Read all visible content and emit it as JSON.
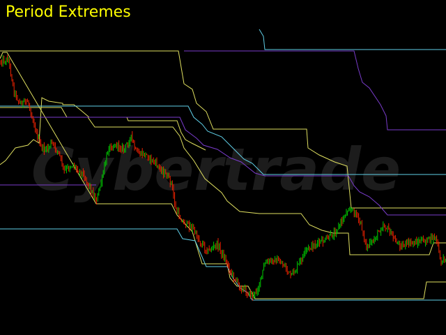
{
  "title": "Period Extremes",
  "watermark": "Cybertrade",
  "colors": {
    "background": "#000000",
    "title": "#ffff00",
    "up_candle": "#00cc00",
    "down_candle": "#ee2200",
    "yellow_band": "#e0e060",
    "cyan_band": "#60d0e8",
    "purple_band": "#7a3ccc",
    "watermark": "#1c1c1c"
  },
  "chart_data": {
    "type": "line",
    "x_count": 640,
    "ylim": [
      0,
      480
    ],
    "price_anchors": [
      [
        0,
        88
      ],
      [
        12,
        85
      ],
      [
        20,
        130
      ],
      [
        28,
        148
      ],
      [
        40,
        145
      ],
      [
        52,
        190
      ],
      [
        58,
        210
      ],
      [
        66,
        215
      ],
      [
        74,
        205
      ],
      [
        84,
        218
      ],
      [
        92,
        245
      ],
      [
        104,
        236
      ],
      [
        118,
        248
      ],
      [
        126,
        262
      ],
      [
        138,
        288
      ],
      [
        146,
        258
      ],
      [
        156,
        210
      ],
      [
        168,
        208
      ],
      [
        178,
        214
      ],
      [
        188,
        196
      ],
      [
        196,
        220
      ],
      [
        210,
        222
      ],
      [
        224,
        235
      ],
      [
        236,
        248
      ],
      [
        246,
        262
      ],
      [
        252,
        300
      ],
      [
        262,
        318
      ],
      [
        276,
        326
      ],
      [
        286,
        345
      ],
      [
        298,
        360
      ],
      [
        312,
        350
      ],
      [
        322,
        370
      ],
      [
        334,
        395
      ],
      [
        346,
        412
      ],
      [
        356,
        420
      ],
      [
        364,
        424
      ],
      [
        372,
        408
      ],
      [
        380,
        378
      ],
      [
        392,
        372
      ],
      [
        406,
        378
      ],
      [
        418,
        396
      ],
      [
        428,
        380
      ],
      [
        440,
        358
      ],
      [
        452,
        350
      ],
      [
        466,
        345
      ],
      [
        478,
        336
      ],
      [
        490,
        318
      ],
      [
        500,
        298
      ],
      [
        510,
        305
      ],
      [
        518,
        322
      ],
      [
        526,
        355
      ],
      [
        534,
        348
      ],
      [
        542,
        334
      ],
      [
        550,
        322
      ],
      [
        558,
        330
      ],
      [
        566,
        344
      ],
      [
        576,
        352
      ],
      [
        590,
        348
      ],
      [
        606,
        346
      ],
      [
        618,
        342
      ],
      [
        626,
        340
      ],
      [
        632,
        375
      ],
      [
        640,
        368
      ]
    ],
    "series": [
      {
        "color_key": "yellow_band",
        "points": [
          [
            0,
            73
          ],
          [
            256,
            73
          ],
          [
            264,
            120
          ],
          [
            276,
            128
          ],
          [
            282,
            148
          ],
          [
            296,
            160
          ],
          [
            306,
            185
          ],
          [
            440,
            185
          ],
          [
            442,
            212
          ],
          [
            458,
            222
          ],
          [
            480,
            232
          ],
          [
            498,
            238
          ],
          [
            504,
            298
          ],
          [
            640,
            298
          ]
        ]
      },
      {
        "color_key": "yellow_band",
        "points": [
          [
            0,
            154
          ],
          [
            88,
            154
          ],
          [
            96,
            168
          ],
          [
            126,
            168
          ],
          [
            136,
            182
          ],
          [
            248,
            182
          ],
          [
            258,
            195
          ],
          [
            264,
            212
          ],
          [
            278,
            230
          ],
          [
            294,
            256
          ],
          [
            318,
            276
          ],
          [
            326,
            288
          ],
          [
            344,
            303
          ],
          [
            372,
            306
          ],
          [
            432,
            306
          ],
          [
            444,
            322
          ],
          [
            462,
            330
          ],
          [
            478,
            334
          ],
          [
            500,
            334
          ],
          [
            502,
            365
          ],
          [
            616,
            365
          ],
          [
            622,
            348
          ],
          [
            640,
            348
          ]
        ]
      },
      {
        "color_key": "yellow_band",
        "points": [
          [
            0,
            236
          ],
          [
            8,
            230
          ],
          [
            22,
            212
          ],
          [
            40,
            208
          ],
          [
            48,
            200
          ],
          [
            56,
            205
          ],
          [
            60,
            140
          ],
          [
            70,
            145
          ],
          [
            90,
            148
          ],
          [
            90,
            150
          ],
          [
            106,
            150
          ],
          [
            116,
            158
          ],
          [
            128,
            168
          ],
          [
            182,
            168
          ],
          [
            184,
            173
          ],
          [
            254,
            173
          ],
          [
            260,
            190
          ],
          [
            266,
            200
          ],
          [
            275,
            205
          ],
          [
            295,
            215
          ]
        ]
      },
      {
        "color_key": "yellow_band",
        "points": [
          [
            0,
            84
          ],
          [
            4,
            75
          ],
          [
            10,
            75
          ],
          [
            138,
            292
          ],
          [
            246,
            292
          ],
          [
            254,
            308
          ],
          [
            276,
            332
          ],
          [
            290,
            378
          ],
          [
            326,
            378
          ],
          [
            330,
            398
          ],
          [
            340,
            410
          ],
          [
            356,
            410
          ],
          [
            366,
            428
          ],
          [
            608,
            428
          ],
          [
            612,
            404
          ],
          [
            640,
            404
          ]
        ]
      },
      {
        "color_key": "cyan_band",
        "points": [
          [
            372,
            42
          ],
          [
            378,
            52
          ],
          [
            380,
            71
          ],
          [
            640,
            71
          ]
        ]
      },
      {
        "color_key": "cyan_band",
        "points": [
          [
            0,
            152
          ],
          [
            270,
            152
          ],
          [
            278,
            168
          ],
          [
            290,
            178
          ],
          [
            298,
            188
          ],
          [
            318,
            196
          ],
          [
            334,
            212
          ],
          [
            350,
            228
          ],
          [
            362,
            234
          ],
          [
            370,
            242
          ],
          [
            378,
            250
          ],
          [
            640,
            250
          ]
        ]
      },
      {
        "color_key": "cyan_band",
        "points": [
          [
            0,
            328
          ],
          [
            254,
            328
          ],
          [
            262,
            342
          ],
          [
            280,
            345
          ],
          [
            290,
            368
          ],
          [
            296,
            382
          ],
          [
            326,
            382
          ],
          [
            334,
            398
          ],
          [
            344,
            412
          ],
          [
            356,
            420
          ],
          [
            362,
            430
          ],
          [
            640,
            430
          ]
        ]
      },
      {
        "color_key": "purple_band",
        "points": [
          [
            0,
            168
          ],
          [
            258,
            168
          ],
          [
            266,
            186
          ],
          [
            282,
            198
          ],
          [
            292,
            208
          ],
          [
            312,
            214
          ],
          [
            330,
            226
          ],
          [
            346,
            232
          ],
          [
            356,
            240
          ],
          [
            366,
            248
          ],
          [
            380,
            252
          ],
          [
            500,
            252
          ],
          [
            508,
            266
          ],
          [
            516,
            275
          ],
          [
            530,
            282
          ],
          [
            544,
            294
          ],
          [
            556,
            308
          ],
          [
            640,
            308
          ]
        ]
      },
      {
        "color_key": "purple_band",
        "points": [
          [
            264,
            73
          ],
          [
            508,
            73
          ],
          [
            514,
            98
          ],
          [
            520,
            118
          ],
          [
            530,
            126
          ],
          [
            546,
            150
          ],
          [
            554,
            166
          ],
          [
            556,
            186
          ],
          [
            640,
            186
          ]
        ]
      },
      {
        "color_key": "purple_band",
        "points": [
          [
            0,
            265
          ],
          [
            138,
            265
          ]
        ]
      }
    ]
  }
}
